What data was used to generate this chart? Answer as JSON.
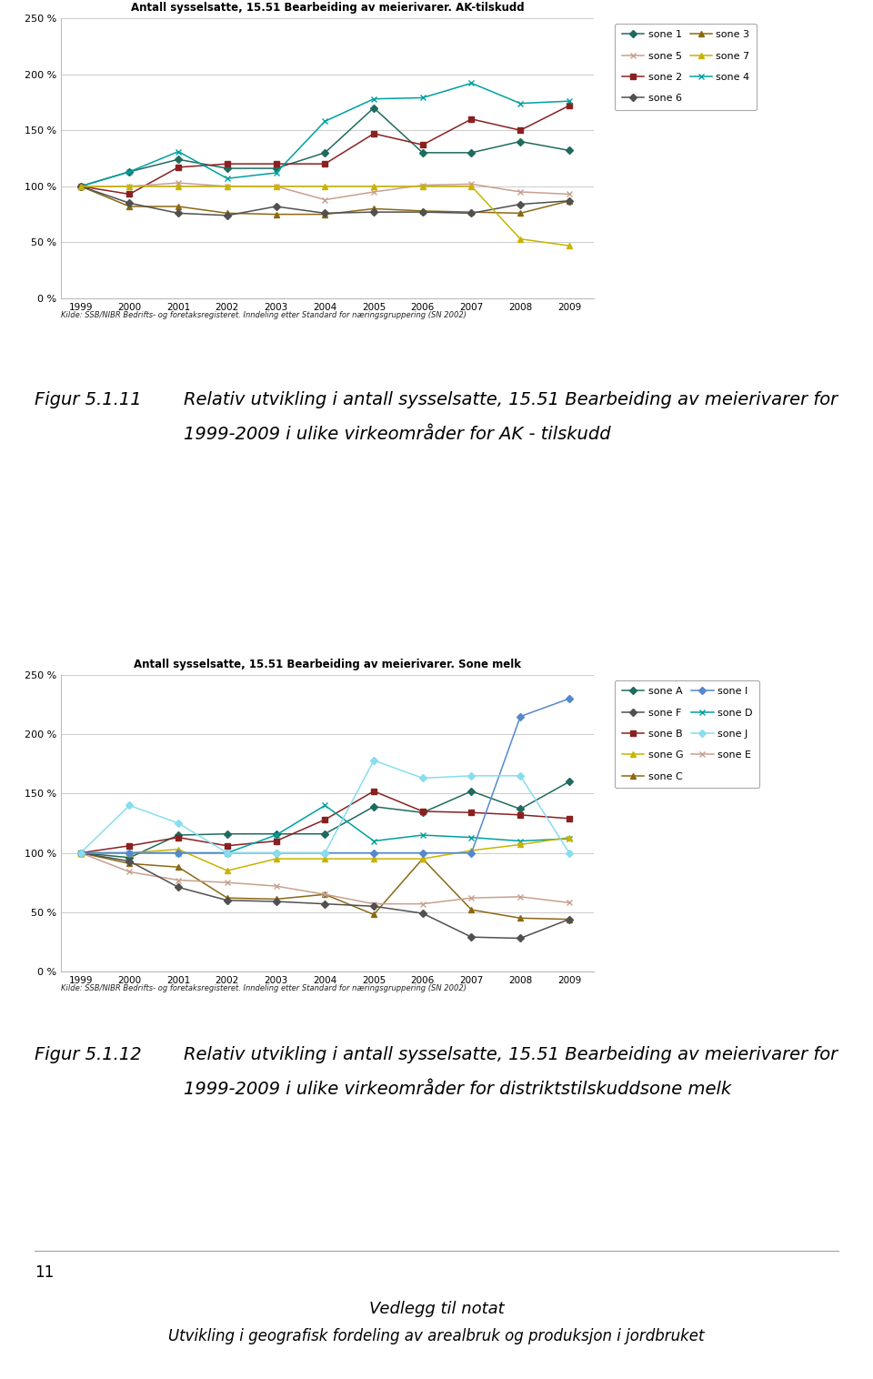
{
  "years": [
    1999,
    2000,
    2001,
    2002,
    2003,
    2004,
    2005,
    2006,
    2007,
    2008,
    2009
  ],
  "chart1_title": "Antall sysselsatte, 15.51 Bearbeiding av meierivarer. AK-tilskudd",
  "chart1_series": [
    {
      "label": "sone 1",
      "color": "#1f6b5e",
      "marker": "D",
      "data": [
        100,
        113,
        124,
        116,
        116,
        130,
        170,
        130,
        130,
        140,
        132
      ]
    },
    {
      "label": "sone 2",
      "color": "#8b2020",
      "marker": "s",
      "data": [
        100,
        93,
        117,
        120,
        120,
        120,
        147,
        137,
        160,
        150,
        172
      ]
    },
    {
      "label": "sone 3",
      "color": "#8b6914",
      "marker": "^",
      "data": [
        100,
        82,
        82,
        76,
        75,
        75,
        80,
        78,
        77,
        76,
        87
      ]
    },
    {
      "label": "sone 4",
      "color": "#00a0a0",
      "marker": "x",
      "data": [
        100,
        113,
        131,
        107,
        112,
        158,
        178,
        179,
        192,
        174,
        176
      ]
    },
    {
      "label": "sone 5",
      "color": "#c8a090",
      "marker": "x",
      "data": [
        100,
        100,
        103,
        100,
        100,
        88,
        95,
        101,
        102,
        95,
        93
      ]
    },
    {
      "label": "sone 6",
      "color": "#505050",
      "marker": "D",
      "data": [
        100,
        85,
        76,
        74,
        82,
        76,
        77,
        77,
        76,
        84,
        87
      ]
    },
    {
      "label": "sone 7",
      "color": "#c8b400",
      "marker": "^",
      "data": [
        100,
        100,
        100,
        100,
        100,
        100,
        100,
        100,
        100,
        53,
        47
      ]
    }
  ],
  "chart2_title": "Antall sysselsatte, 15.51 Bearbeiding av meierivarer. Sone melk",
  "chart2_series": [
    {
      "label": "sone A",
      "color": "#1f6b5e",
      "marker": "D",
      "data": [
        100,
        96,
        115,
        116,
        116,
        116,
        139,
        134,
        152,
        137,
        160
      ]
    },
    {
      "label": "sone B",
      "color": "#8b2020",
      "marker": "s",
      "data": [
        100,
        106,
        113,
        106,
        110,
        128,
        152,
        135,
        134,
        132,
        129
      ]
    },
    {
      "label": "sone C",
      "color": "#8b6914",
      "marker": "^",
      "data": [
        100,
        91,
        88,
        62,
        61,
        65,
        48,
        95,
        52,
        45,
        44
      ]
    },
    {
      "label": "sone D",
      "color": "#00a0a0",
      "marker": "x",
      "data": [
        100,
        100,
        100,
        100,
        115,
        140,
        110,
        115,
        113,
        110,
        112
      ]
    },
    {
      "label": "sone E",
      "color": "#c8a090",
      "marker": "x",
      "data": [
        100,
        84,
        77,
        75,
        72,
        65,
        57,
        57,
        62,
        63,
        58
      ]
    },
    {
      "label": "sone F",
      "color": "#505050",
      "marker": "D",
      "data": [
        100,
        93,
        71,
        60,
        59,
        57,
        55,
        49,
        29,
        28,
        44
      ]
    },
    {
      "label": "sone G",
      "color": "#c8b400",
      "marker": "^",
      "data": [
        100,
        100,
        103,
        85,
        95,
        95,
        95,
        95,
        102,
        107,
        113
      ]
    },
    {
      "label": "sone I",
      "color": "#5588cc",
      "marker": "D",
      "data": [
        100,
        100,
        100,
        100,
        100,
        100,
        100,
        100,
        100,
        215,
        230
      ]
    },
    {
      "label": "sone J",
      "color": "#88ddee",
      "marker": "D",
      "data": [
        100,
        140,
        125,
        100,
        100,
        100,
        178,
        163,
        165,
        165,
        100
      ]
    }
  ],
  "source_text": "Kilde: SSB/NIBR Bedrifts- og foretaksregisteret. Inndeling etter Standard for næringsgruppering (SN 2002)",
  "fig11_number": "Figur 5.1.11",
  "fig11_line1": "Relativ utvikling i antall sysselsatte, 15.51 Bearbeiding av meierivarer for",
  "fig11_line2": "1999-2009 i ulike virkeområder for AK - tilskudd",
  "fig12_number": "Figur 5.1.12",
  "fig12_line1": "Relativ utvikling i antall sysselsatte, 15.51 Bearbeiding av meierivarer for",
  "fig12_line2": "1999-2009 i ulike virkeområder for distriktstilskuddsone melk",
  "footer_num": "11",
  "footer_title": "Vedlegg til notat",
  "footer_sub": "Utvikling i geografisk fordeling av arealbruk og produksjon i jordbruket",
  "ylim": [
    0,
    250
  ],
  "yticks": [
    0,
    50,
    100,
    150,
    200,
    250
  ],
  "ytick_labels": [
    "0 %",
    "50 %",
    "100 %",
    "150 %",
    "200 %",
    "250 %"
  ]
}
